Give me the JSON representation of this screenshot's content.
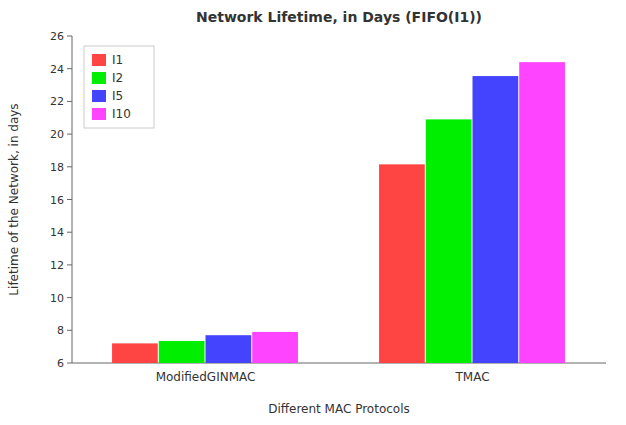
{
  "chart_data": {
    "type": "bar",
    "title": "Network Lifetime, in Days (FIFO(I1))",
    "xlabel": "Different MAC Protocols",
    "ylabel": "Lifetime of the Network, in days",
    "categories": [
      "ModifiedGINMAC",
      "TMAC"
    ],
    "series": [
      {
        "name": "I1",
        "color": "#ff4444",
        "values": [
          7.2,
          18.15
        ]
      },
      {
        "name": "I2",
        "color": "#00ee00",
        "values": [
          7.35,
          20.9
        ]
      },
      {
        "name": "I5",
        "color": "#4444ff",
        "values": [
          7.7,
          23.55
        ]
      },
      {
        "name": "I10",
        "color": "#ff44ff",
        "values": [
          7.9,
          24.4
        ]
      }
    ],
    "ylim": [
      6,
      26
    ],
    "yticks": [
      6,
      8,
      10,
      12,
      14,
      16,
      18,
      20,
      22,
      24,
      26
    ],
    "grid": false,
    "legend": "upper left"
  }
}
